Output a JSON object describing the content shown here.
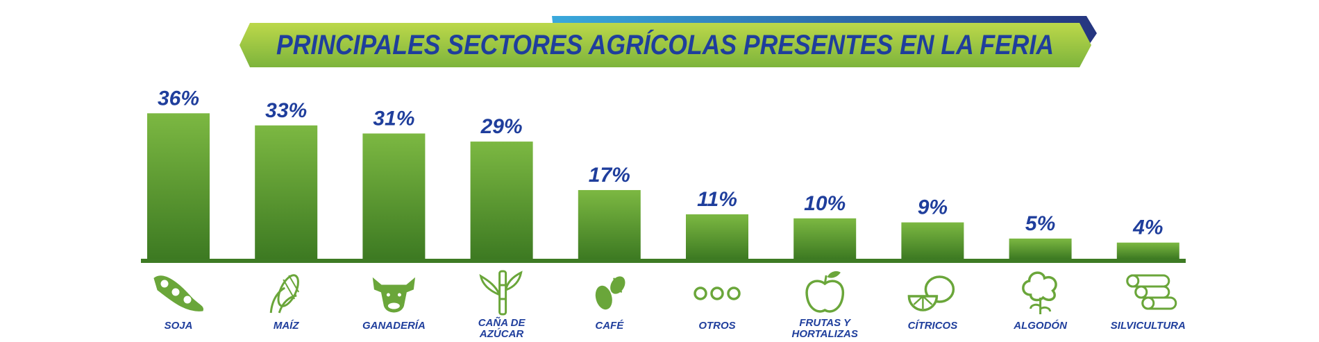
{
  "title": "PRINCIPALES SECTORES AGRÍCOLAS PRESENTES EN LA FERIA",
  "colors": {
    "bar_top": "#7cb842",
    "bar_bottom": "#3d7a22",
    "baseline": "#3e7b24",
    "text": "#1f3e9c",
    "banner_green_light": "#b7d443",
    "banner_green_dark": "#7fb53e",
    "banner_blue": "#2a3f8f",
    "icon": "#6aa63a"
  },
  "chart_data": {
    "type": "bar",
    "title": "PRINCIPALES SECTORES AGRÍCOLAS PRESENTES EN LA FERIA",
    "categories": [
      "SOJA",
      "MAÍZ",
      "GANADERÍA",
      "CAÑA DE AZÚCAR",
      "CAFÉ",
      "OTROS",
      "FRUTAS Y HORTALIZAS",
      "CÍTRICOS",
      "ALGODÓN",
      "SILVICULTURA"
    ],
    "category_lines": [
      [
        "SOJA"
      ],
      [
        "MAÍZ"
      ],
      [
        "GANADERÍA"
      ],
      [
        "CAÑA DE",
        "AZÚCAR"
      ],
      [
        "CAFÉ"
      ],
      [
        "OTROS"
      ],
      [
        "FRUTAS Y",
        "HORTALIZAS"
      ],
      [
        "CÍTRICOS"
      ],
      [
        "ALGODÓN"
      ],
      [
        "SILVICULTURA"
      ]
    ],
    "values": [
      36,
      33,
      31,
      29,
      17,
      11,
      10,
      9,
      5,
      4
    ],
    "value_labels": [
      "36%",
      "33%",
      "31%",
      "29%",
      "17%",
      "11%",
      "10%",
      "9%",
      "5%",
      "4%"
    ],
    "icons": [
      "soybean-icon",
      "corn-icon",
      "cow-icon",
      "sugarcane-icon",
      "coffee-bean-icon",
      "three-dots-icon",
      "apple-icon",
      "citrus-icon",
      "cotton-icon",
      "logs-icon"
    ],
    "xlabel": "",
    "ylabel": "",
    "ylim": [
      0,
      40
    ],
    "grid": false,
    "legend": "none"
  }
}
